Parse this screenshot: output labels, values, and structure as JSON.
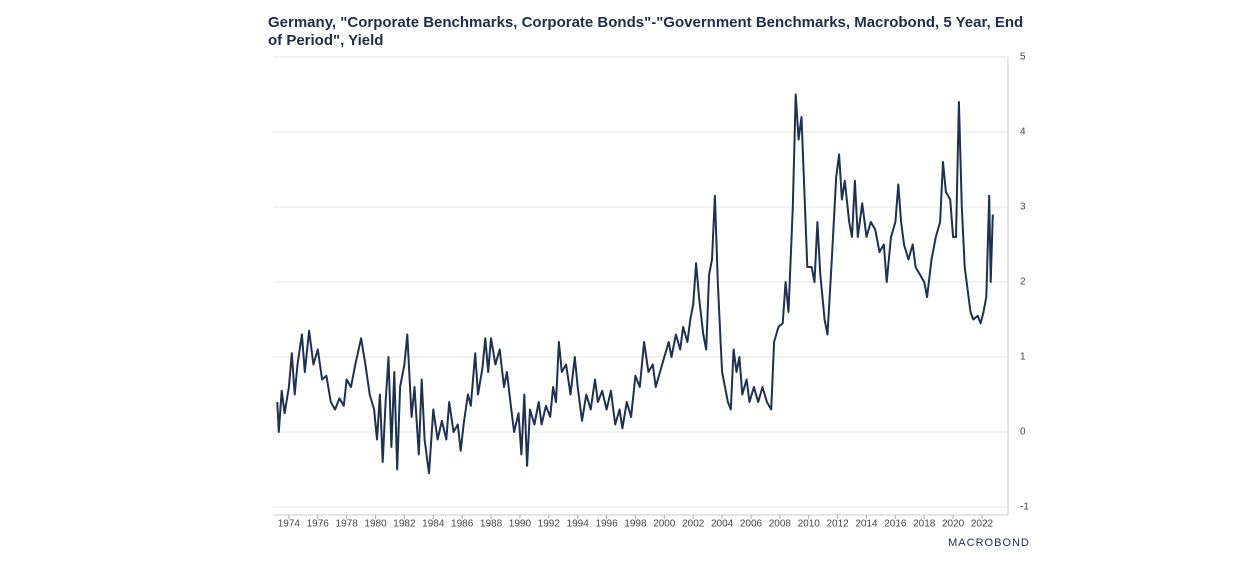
{
  "chart_data": {
    "type": "line",
    "title": "Germany, \"Corporate Benchmarks, Corporate Bonds\"-\"Government Benchmarks, Macrobond, 5 Year, End of Period\", Yield",
    "source": "MACROBOND",
    "xlim": [
      1972.9,
      2023.8
    ],
    "xticks": [
      1974,
      1976,
      1978,
      1980,
      1982,
      1984,
      1986,
      1988,
      1990,
      1992,
      1994,
      1996,
      1998,
      2000,
      2002,
      2004,
      2006,
      2008,
      2010,
      2012,
      2014,
      2016,
      2018,
      2020,
      2022
    ],
    "ylim": [
      -1,
      5
    ],
    "yticks": [
      -1,
      0,
      1,
      2,
      3,
      4,
      5
    ],
    "grid": true,
    "series": [
      {
        "name": "Yield",
        "color": "#1f3050",
        "x": [
          1973.2,
          1973.3,
          1973.5,
          1973.7,
          1974.0,
          1974.2,
          1974.4,
          1974.6,
          1974.9,
          1975.1,
          1975.4,
          1975.7,
          1976.0,
          1976.3,
          1976.6,
          1976.9,
          1977.2,
          1977.5,
          1977.8,
          1978.0,
          1978.3,
          1978.6,
          1979.0,
          1979.3,
          1979.6,
          1979.9,
          1980.1,
          1980.3,
          1980.5,
          1980.7,
          1980.9,
          1981.1,
          1981.3,
          1981.5,
          1981.7,
          1982.0,
          1982.2,
          1982.5,
          1982.7,
          1983.0,
          1983.2,
          1983.4,
          1983.7,
          1983.9,
          1984.0,
          1984.3,
          1984.6,
          1984.9,
          1985.1,
          1985.4,
          1985.7,
          1985.9,
          1986.1,
          1986.4,
          1986.6,
          1986.9,
          1987.1,
          1987.4,
          1987.6,
          1987.8,
          1988.0,
          1988.3,
          1988.6,
          1988.9,
          1989.1,
          1989.4,
          1989.6,
          1989.9,
          1990.1,
          1990.3,
          1990.5,
          1990.7,
          1991.0,
          1991.3,
          1991.5,
          1991.8,
          1992.1,
          1992.3,
          1992.5,
          1992.7,
          1992.9,
          1993.2,
          1993.5,
          1993.8,
          1994.0,
          1994.3,
          1994.6,
          1994.9,
          1995.2,
          1995.4,
          1995.7,
          1996.0,
          1996.3,
          1996.6,
          1996.9,
          1997.1,
          1997.4,
          1997.7,
          1998.0,
          1998.3,
          1998.6,
          1998.9,
          1999.2,
          1999.4,
          1999.7,
          2000.0,
          2000.3,
          2000.5,
          2000.8,
          2001.1,
          2001.3,
          2001.6,
          2001.8,
          2002.0,
          2002.2,
          2002.4,
          2002.7,
          2002.9,
          2003.1,
          2003.3,
          2003.5,
          2003.7,
          2003.9,
          2004.0,
          2004.2,
          2004.4,
          2004.6,
          2004.8,
          2005.0,
          2005.2,
          2005.4,
          2005.7,
          2005.9,
          2006.2,
          2006.5,
          2006.8,
          2007.1,
          2007.4,
          2007.6,
          2007.9,
          2008.2,
          2008.4,
          2008.6,
          2008.9,
          2009.1,
          2009.3,
          2009.5,
          2009.7,
          2009.9,
          2010.2,
          2010.4,
          2010.6,
          2010.8,
          2011.1,
          2011.3,
          2011.6,
          2011.9,
          2012.1,
          2012.3,
          2012.5,
          2012.8,
          2013.0,
          2013.2,
          2013.4,
          2013.7,
          2014.0,
          2014.3,
          2014.6,
          2014.9,
          2015.2,
          2015.4,
          2015.7,
          2016.0,
          2016.2,
          2016.4,
          2016.6,
          2016.9,
          2017.2,
          2017.4,
          2017.7,
          2018.0,
          2018.2,
          2018.5,
          2018.8,
          2019.1,
          2019.3,
          2019.5,
          2019.8,
          2020.0,
          2020.2,
          2020.4,
          2020.6,
          2020.8,
          2021.0,
          2021.2,
          2021.4,
          2021.7,
          2021.9,
          2022.1,
          2022.3,
          2022.5,
          2022.6,
          2022.75
        ],
        "values": [
          0.4,
          0.0,
          0.55,
          0.25,
          0.6,
          1.05,
          0.5,
          0.9,
          1.3,
          0.8,
          1.35,
          0.9,
          1.1,
          0.7,
          0.75,
          0.4,
          0.3,
          0.45,
          0.35,
          0.7,
          0.6,
          0.9,
          1.25,
          0.9,
          0.5,
          0.3,
          -0.1,
          0.5,
          -0.4,
          0.4,
          1.0,
          -0.2,
          0.8,
          -0.5,
          0.6,
          0.9,
          1.3,
          0.2,
          0.6,
          -0.3,
          0.7,
          -0.1,
          -0.55,
          0.0,
          0.3,
          -0.1,
          0.15,
          -0.1,
          0.4,
          0.0,
          0.1,
          -0.25,
          0.1,
          0.5,
          0.35,
          1.05,
          0.5,
          0.85,
          1.25,
          0.8,
          1.25,
          0.9,
          1.1,
          0.6,
          0.8,
          0.3,
          0.0,
          0.25,
          -0.3,
          0.5,
          -0.45,
          0.3,
          0.1,
          0.4,
          0.1,
          0.35,
          0.2,
          0.6,
          0.4,
          1.2,
          0.8,
          0.9,
          0.5,
          1.0,
          0.6,
          0.15,
          0.5,
          0.3,
          0.7,
          0.4,
          0.55,
          0.3,
          0.55,
          0.1,
          0.3,
          0.05,
          0.4,
          0.2,
          0.75,
          0.6,
          1.2,
          0.8,
          0.9,
          0.6,
          0.8,
          1.0,
          1.2,
          1.0,
          1.3,
          1.1,
          1.4,
          1.2,
          1.5,
          1.7,
          2.25,
          1.8,
          1.3,
          1.1,
          2.1,
          2.3,
          3.15,
          2.0,
          1.2,
          0.8,
          0.6,
          0.4,
          0.3,
          1.1,
          0.8,
          1.0,
          0.5,
          0.7,
          0.4,
          0.6,
          0.4,
          0.6,
          0.4,
          0.3,
          1.2,
          1.4,
          1.45,
          2.0,
          1.6,
          3.0,
          4.5,
          3.9,
          4.2,
          3.2,
          2.2,
          2.2,
          2.0,
          2.8,
          2.1,
          1.5,
          1.3,
          2.3,
          3.4,
          3.7,
          3.1,
          3.35,
          2.8,
          2.6,
          3.35,
          2.6,
          3.05,
          2.6,
          2.8,
          2.7,
          2.4,
          2.5,
          2.0,
          2.6,
          2.8,
          3.3,
          2.8,
          2.5,
          2.3,
          2.5,
          2.2,
          2.1,
          2.0,
          1.8,
          2.3,
          2.6,
          2.8,
          3.6,
          3.2,
          3.1,
          2.6,
          2.6,
          4.4,
          3.0,
          2.2,
          1.9,
          1.6,
          1.5,
          1.55,
          1.45,
          1.6,
          1.8,
          3.15,
          2.0,
          2.9
        ]
      }
    ]
  }
}
